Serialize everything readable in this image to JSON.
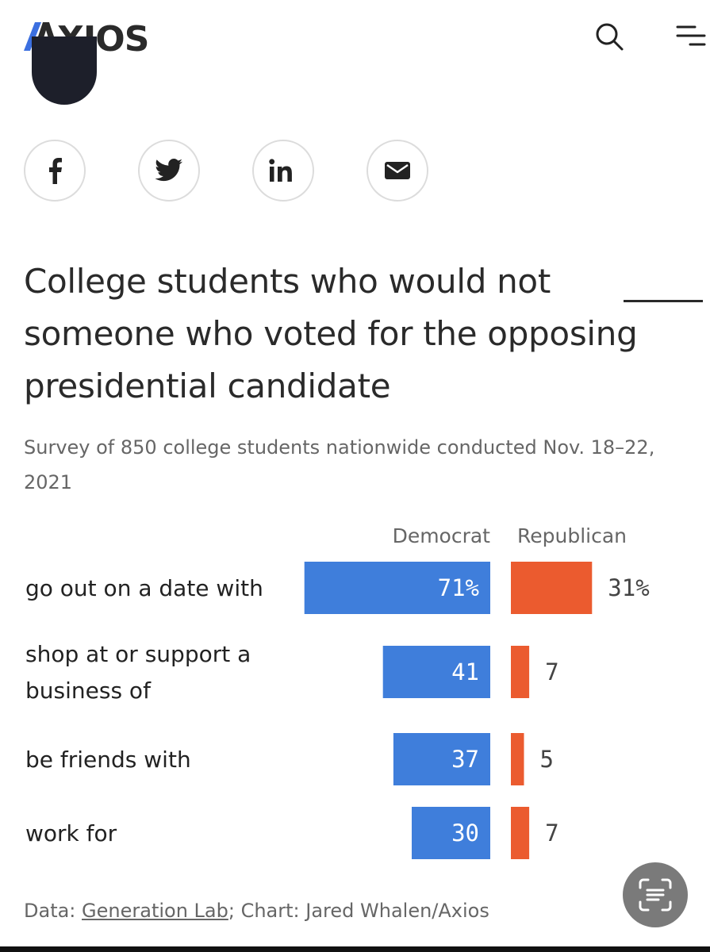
{
  "header": {
    "brand": "AXIOS",
    "brand_color": "#2a2a2a",
    "brand_accent": "#3b6fe0"
  },
  "share": {
    "icons": [
      "facebook-icon",
      "twitter-icon",
      "linkedin-icon",
      "email-icon"
    ]
  },
  "article": {
    "headline": "College students who would not",
    "headline_rest": "someone who voted for the opposing presidential candidate",
    "subtitle": "Survey of 850 college students nationwide conducted Nov. 18–22, 2021"
  },
  "chart_data": {
    "type": "bar",
    "orientation": "horizontal-diverging",
    "categories": [
      "go out on a date with",
      "shop at or support a business of",
      "be friends with",
      "work for"
    ],
    "series": [
      {
        "name": "Democrat",
        "color": "#3f7edb",
        "values": [
          71,
          41,
          37,
          30
        ],
        "labels": [
          "71%",
          "41",
          "37",
          "30"
        ]
      },
      {
        "name": "Republican",
        "color": "#eb5b2f",
        "values": [
          31,
          7,
          5,
          7
        ],
        "labels": [
          "31%",
          "7",
          "5",
          "7"
        ]
      }
    ],
    "unit": "%",
    "xlim": [
      0,
      100
    ]
  },
  "source": {
    "prefix": "Data: ",
    "link_text": "Generation Lab",
    "suffix": "; Chart: Jared Whalen/Axios"
  }
}
